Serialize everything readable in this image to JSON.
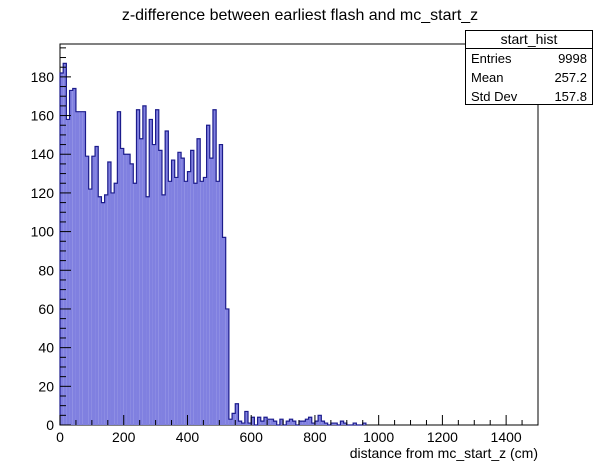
{
  "chart_data": {
    "type": "histogram",
    "title": "z-difference between earliest flash and mc_start_z",
    "xlabel": "distance from mc_start_z (cm)",
    "ylabel": "",
    "xlim": [
      0,
      1500
    ],
    "ylim": [
      0,
      197
    ],
    "bin_width": 10,
    "x_ticks": [
      0,
      200,
      400,
      600,
      800,
      1000,
      1200,
      1400
    ],
    "y_ticks": [
      0,
      20,
      40,
      60,
      80,
      100,
      120,
      140,
      160,
      180
    ],
    "line_color": "#1c1c8c",
    "fill_color": "#8080e0",
    "bins": [
      [
        0,
        182
      ],
      [
        10,
        187
      ],
      [
        20,
        158
      ],
      [
        30,
        173
      ],
      [
        40,
        174
      ],
      [
        50,
        162
      ],
      [
        60,
        162
      ],
      [
        70,
        162
      ],
      [
        80,
        139
      ],
      [
        90,
        122
      ],
      [
        100,
        139
      ],
      [
        110,
        144
      ],
      [
        120,
        118
      ],
      [
        130,
        115
      ],
      [
        140,
        119
      ],
      [
        150,
        136
      ],
      [
        160,
        120
      ],
      [
        170,
        125
      ],
      [
        180,
        162
      ],
      [
        190,
        143
      ],
      [
        200,
        140
      ],
      [
        210,
        140
      ],
      [
        220,
        135
      ],
      [
        230,
        125
      ],
      [
        240,
        163
      ],
      [
        250,
        148
      ],
      [
        260,
        165
      ],
      [
        270,
        118
      ],
      [
        280,
        158
      ],
      [
        290,
        145
      ],
      [
        300,
        163
      ],
      [
        310,
        142
      ],
      [
        320,
        119
      ],
      [
        330,
        152
      ],
      [
        340,
        126
      ],
      [
        350,
        137
      ],
      [
        360,
        128
      ],
      [
        370,
        141
      ],
      [
        380,
        138
      ],
      [
        390,
        126
      ],
      [
        400,
        131
      ],
      [
        410,
        142
      ],
      [
        420,
        125
      ],
      [
        430,
        148
      ],
      [
        440,
        126
      ],
      [
        450,
        128
      ],
      [
        460,
        155
      ],
      [
        470,
        138
      ],
      [
        480,
        163
      ],
      [
        490,
        126
      ],
      [
        500,
        145
      ],
      [
        510,
        97
      ],
      [
        520,
        60
      ],
      [
        530,
        3
      ],
      [
        540,
        6
      ],
      [
        550,
        11
      ],
      [
        560,
        2
      ],
      [
        570,
        1
      ],
      [
        580,
        7
      ],
      [
        590,
        1
      ],
      [
        600,
        4
      ],
      [
        610,
        0
      ],
      [
        620,
        4
      ],
      [
        630,
        2
      ],
      [
        640,
        4
      ],
      [
        650,
        3
      ],
      [
        660,
        3
      ],
      [
        670,
        2
      ],
      [
        680,
        0
      ],
      [
        690,
        3
      ],
      [
        700,
        0
      ],
      [
        710,
        2
      ],
      [
        720,
        3
      ],
      [
        730,
        2
      ],
      [
        740,
        0
      ],
      [
        750,
        2
      ],
      [
        760,
        2
      ],
      [
        770,
        3
      ],
      [
        780,
        4
      ],
      [
        790,
        1
      ],
      [
        800,
        2
      ],
      [
        810,
        5
      ],
      [
        820,
        2
      ],
      [
        830,
        1
      ],
      [
        840,
        0
      ],
      [
        850,
        1
      ],
      [
        860,
        1
      ],
      [
        870,
        0
      ],
      [
        880,
        2
      ],
      [
        890,
        1
      ],
      [
        900,
        0
      ],
      [
        910,
        0
      ],
      [
        920,
        1
      ],
      [
        930,
        0
      ],
      [
        940,
        0
      ],
      [
        950,
        1
      ]
    ]
  },
  "stats_box": {
    "name": "start_hist",
    "rows": [
      {
        "label": "Entries",
        "value": "9998"
      },
      {
        "label": "Mean",
        "value": "257.2"
      },
      {
        "label": "Std Dev",
        "value": "157.8"
      }
    ]
  }
}
